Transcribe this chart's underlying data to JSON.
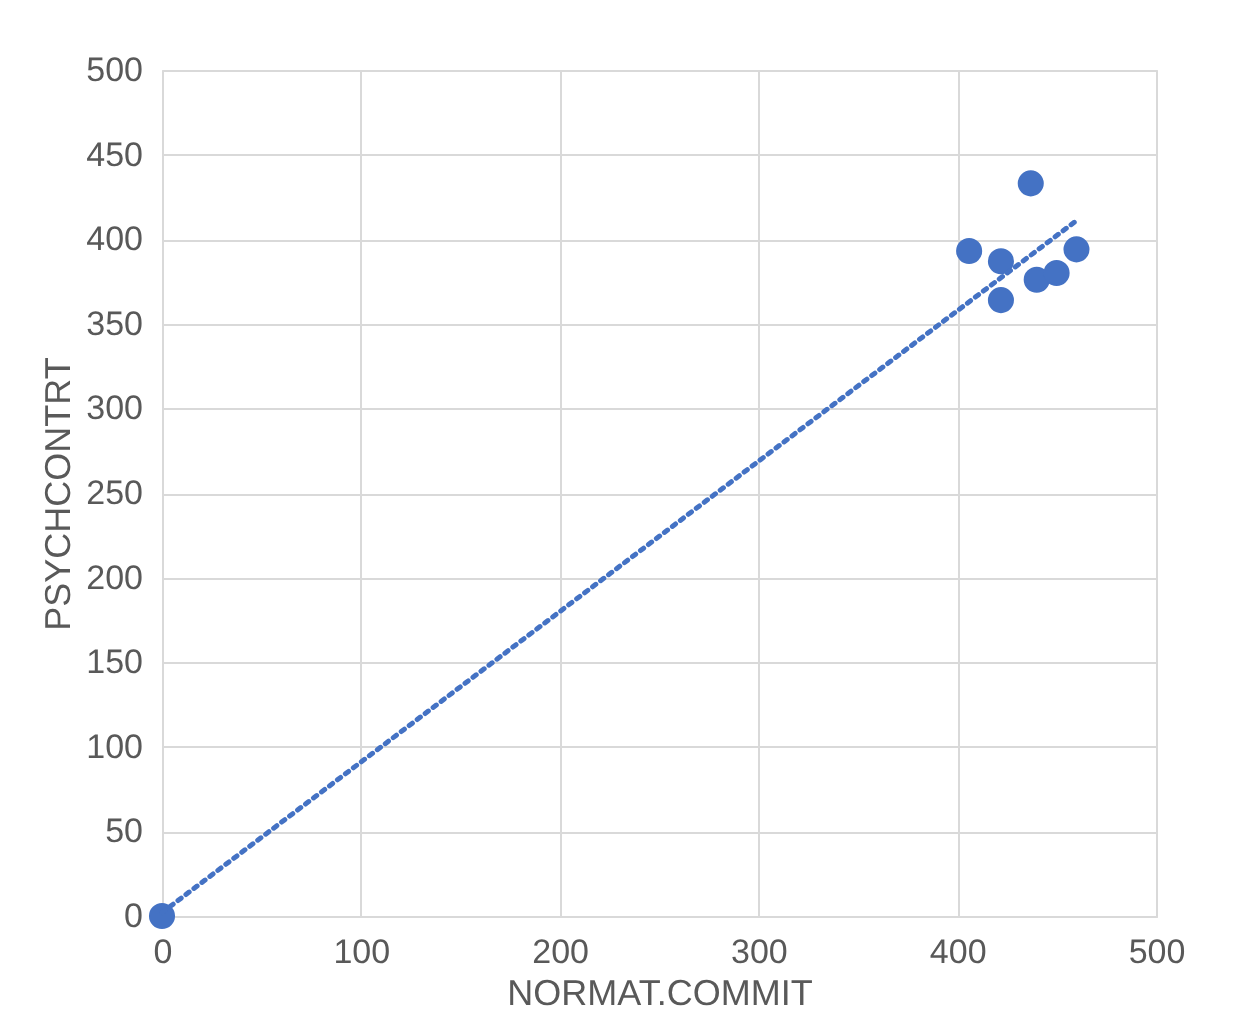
{
  "chart_data": {
    "type": "scatter",
    "xlabel": "NORMAT.COMMIT",
    "ylabel": "PSYCHCONTRT",
    "series": [
      {
        "color": "#4472c4",
        "marker": "circle",
        "x": [
          0,
          406,
          422,
          422,
          437,
          440,
          450,
          460
        ],
        "values": [
          0,
          393,
          387,
          364,
          433,
          376,
          380,
          394
        ]
      },
      {
        "type": "line",
        "color": "#4472c4",
        "line_style": "dotted",
        "x": [
          0,
          460
        ],
        "values": [
          2,
          411
        ]
      }
    ],
    "xlim": [
      0,
      500
    ],
    "ylim": [
      0,
      500
    ],
    "xticks": [
      0,
      100,
      200,
      300,
      400,
      500
    ],
    "yticks": [
      0,
      50,
      100,
      150,
      200,
      250,
      300,
      350,
      400,
      450,
      500
    ],
    "grid": true
  }
}
